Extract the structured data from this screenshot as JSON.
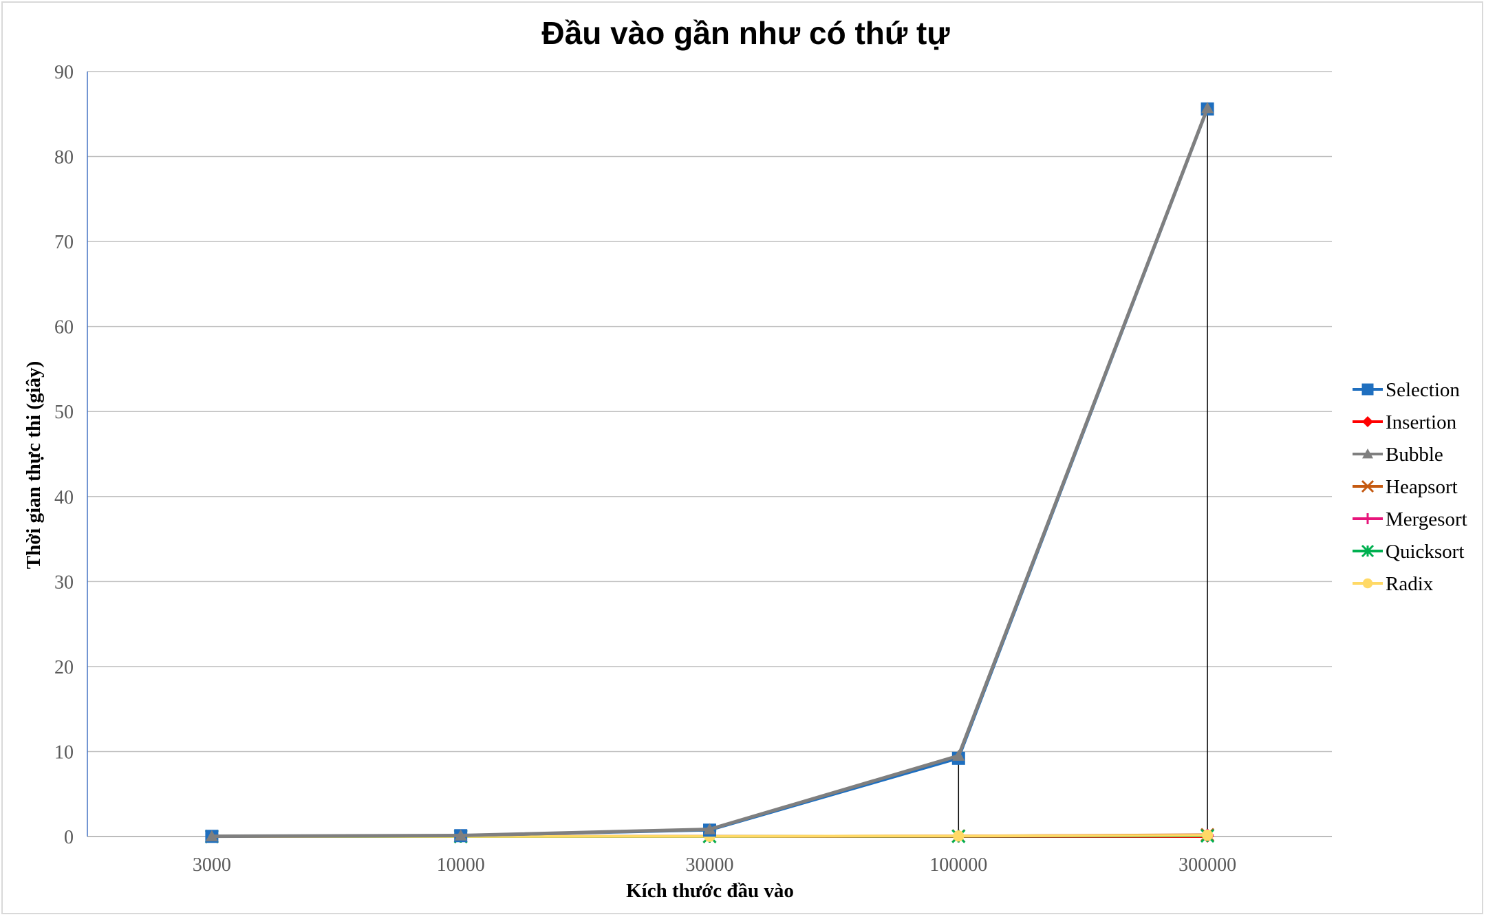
{
  "chart_data": {
    "type": "line",
    "title": "Đầu vào gần như có thứ tự",
    "xlabel": "Kích thước đầu vào",
    "ylabel": "Thời gian thực thi (giây)",
    "categories": [
      "3000",
      "10000",
      "30000",
      "100000",
      "300000"
    ],
    "ylim": [
      0,
      90
    ],
    "yticks": [
      0,
      10,
      20,
      30,
      40,
      50,
      60,
      70,
      80,
      90
    ],
    "grid": true,
    "legend_position": "right",
    "series": [
      {
        "name": "Selection",
        "color": "#1f6fbf",
        "marker": "square",
        "values": [
          0.02,
          0.1,
          0.75,
          9.2,
          85.6
        ]
      },
      {
        "name": "Insertion",
        "color": "#ff0000",
        "marker": "diamond",
        "values": [
          0.0,
          0.0,
          0.0,
          0.0,
          0.0
        ]
      },
      {
        "name": "Bubble",
        "color": "#7f7f7f",
        "marker": "triangle",
        "values": [
          0.03,
          0.12,
          0.85,
          9.5,
          85.7
        ]
      },
      {
        "name": "Heapsort",
        "color": "#c55a11",
        "marker": "x",
        "values": [
          0.0,
          0.01,
          0.02,
          0.06,
          0.2
        ]
      },
      {
        "name": "Mergesort",
        "color": "#e7157b",
        "marker": "plus",
        "values": [
          0.0,
          0.01,
          0.02,
          0.05,
          0.15
        ]
      },
      {
        "name": "Quicksort",
        "color": "#00b050",
        "marker": "star",
        "values": [
          0.0,
          0.0,
          0.01,
          0.03,
          0.08
        ]
      },
      {
        "name": "Radix",
        "color": "#ffd966",
        "marker": "circle",
        "values": [
          0.0,
          0.01,
          0.02,
          0.06,
          0.15
        ]
      }
    ]
  }
}
